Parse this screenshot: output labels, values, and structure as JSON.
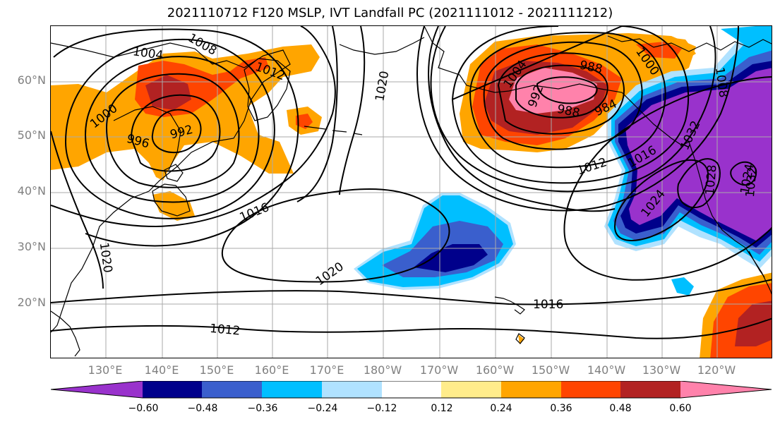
{
  "title": "2021110712 F120 MSLP, IVT Landfall PC (2021111012 - 2021111212)",
  "lat_labels": [
    "60°N",
    "50°N",
    "40°N",
    "30°N",
    "20°N"
  ],
  "lon_labels": [
    "130°E",
    "140°E",
    "150°E",
    "160°E",
    "170°E",
    "180°W",
    "170°W",
    "160°W",
    "150°W",
    "140°W",
    "130°W",
    "120°W"
  ],
  "colorbar": {
    "ticks": [
      "−0.60",
      "−0.48",
      "−0.36",
      "−0.24",
      "−0.12",
      "0.12",
      "0.24",
      "0.36",
      "0.48",
      "0.60"
    ],
    "colors": [
      "#9932cc",
      "#00008b",
      "#3a5fcd",
      "#00bfff",
      "#b0e2ff",
      "#ffffff",
      "#ffec8b",
      "#ffa500",
      "#ff4500",
      "#b22222",
      "#ff82ab"
    ]
  },
  "contour_labels": [
    "1004",
    "1008",
    "1012",
    "1000",
    "996",
    "992",
    "1020",
    "1016",
    "1020",
    "1020",
    "1004",
    "992",
    "988",
    "988",
    "984",
    "1000",
    "1008",
    "1012",
    "1016",
    "1024",
    "1032",
    "1028",
    "1016",
    "1012",
    "1024",
    "1032"
  ],
  "colors": {
    "contour": "#000000",
    "coast": "#000000",
    "grid": "#aaaaaa"
  }
}
